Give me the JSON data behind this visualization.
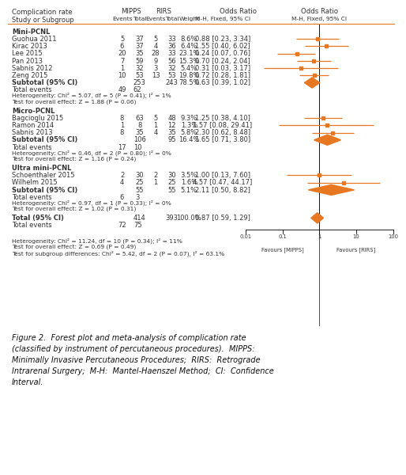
{
  "subgroups": [
    {
      "name": "Mini-PCNL",
      "studies": [
        {
          "label": "Guohua 2011",
          "e1": 5,
          "n1": 37,
          "e2": 5,
          "n2": 33,
          "weight": "8.6%",
          "or": 0.88,
          "ci_lo": 0.23,
          "ci_hi": 3.34,
          "or_text": "0.88 [0.23, 3.34]"
        },
        {
          "label": "Kirac 2013",
          "e1": 6,
          "n1": 37,
          "e2": 4,
          "n2": 36,
          "weight": "6.4%",
          "or": 1.55,
          "ci_lo": 0.4,
          "ci_hi": 6.02,
          "or_text": "1.55 [0.40, 6.02]"
        },
        {
          "label": "Lee 2015",
          "e1": 20,
          "n1": 35,
          "e2": 28,
          "n2": 33,
          "weight": "23.1%",
          "or": 0.24,
          "ci_lo": 0.07,
          "ci_hi": 0.76,
          "or_text": "0.24 [0.07, 0.76]"
        },
        {
          "label": "Pan 2013",
          "e1": 7,
          "n1": 59,
          "e2": 9,
          "n2": 56,
          "weight": "15.3%",
          "or": 0.7,
          "ci_lo": 0.24,
          "ci_hi": 2.04,
          "or_text": "0.70 [0.24, 2.04]"
        },
        {
          "label": "Sabnis 2012",
          "e1": 1,
          "n1": 32,
          "e2": 3,
          "n2": 32,
          "weight": "5.4%",
          "or": 0.31,
          "ci_lo": 0.03,
          "ci_hi": 3.17,
          "or_text": "0.31 [0.03, 3.17]"
        },
        {
          "label": "Zeng 2015",
          "e1": 10,
          "n1": 53,
          "e2": 13,
          "n2": 53,
          "weight": "19.8%",
          "or": 0.72,
          "ci_lo": 0.28,
          "ci_hi": 1.81,
          "or_text": "0.72 [0.28, 1.81]"
        }
      ],
      "subtotal_n1": 253,
      "subtotal_n2": 243,
      "subtotal_weight": "78.5%",
      "subtotal_or": 0.63,
      "subtotal_ci_lo": 0.39,
      "subtotal_ci_hi": 1.02,
      "subtotal_or_text": "0.63 [0.39, 1.02]",
      "te1": 49,
      "te2": 62,
      "heterogeneity": "Heterogeneity: Chi² = 5.07, df = 5 (P = 0.41); I² = 1%",
      "test_overall": "Test for overall effect: Z = 1.88 (P = 0.06)"
    },
    {
      "name": "Micro-PCNL",
      "studies": [
        {
          "label": "Bagcioglu 2015",
          "e1": 8,
          "n1": 63,
          "e2": 5,
          "n2": 48,
          "weight": "9.3%",
          "or": 1.25,
          "ci_lo": 0.38,
          "ci_hi": 4.1,
          "or_text": "1.25 [0.38, 4.10]"
        },
        {
          "label": "Ramon 2014",
          "e1": 1,
          "n1": 8,
          "e2": 1,
          "n2": 12,
          "weight": "1.3%",
          "or": 1.57,
          "ci_lo": 0.08,
          "ci_hi": 29.41,
          "or_text": "1.57 [0.08, 29.41]"
        },
        {
          "label": "Sabnis 2013",
          "e1": 8,
          "n1": 35,
          "e2": 4,
          "n2": 35,
          "weight": "5.8%",
          "or": 2.3,
          "ci_lo": 0.62,
          "ci_hi": 8.48,
          "or_text": "2.30 [0.62, 8.48]"
        }
      ],
      "subtotal_n1": 106,
      "subtotal_n2": 95,
      "subtotal_weight": "16.4%",
      "subtotal_or": 1.65,
      "subtotal_ci_lo": 0.71,
      "subtotal_ci_hi": 3.8,
      "subtotal_or_text": "1.65 [0.71, 3.80]",
      "te1": 17,
      "te2": 10,
      "heterogeneity": "Heterogeneity: Chi² = 0.46, df = 2 (P = 0.80); I² = 0%",
      "test_overall": "Test for overall effect: Z = 1.16 (P = 0.24)"
    },
    {
      "name": "Ultra mini-PCNL",
      "studies": [
        {
          "label": "Schoenthaler 2015",
          "e1": 2,
          "n1": 30,
          "e2": 2,
          "n2": 30,
          "weight": "3.5%",
          "or": 1.0,
          "ci_lo": 0.13,
          "ci_hi": 7.6,
          "or_text": "1.00 [0.13, 7.60]"
        },
        {
          "label": "Wilhelm 2015",
          "e1": 4,
          "n1": 25,
          "e2": 1,
          "n2": 25,
          "weight": "1.6%",
          "or": 4.57,
          "ci_lo": 0.47,
          "ci_hi": 44.17,
          "or_text": "4.57 [0.47, 44.17]"
        }
      ],
      "subtotal_n1": 55,
      "subtotal_n2": 55,
      "subtotal_weight": "5.1%",
      "subtotal_or": 2.11,
      "subtotal_ci_lo": 0.5,
      "subtotal_ci_hi": 8.82,
      "subtotal_or_text": "2.11 [0.50, 8.82]",
      "te1": 6,
      "te2": 3,
      "heterogeneity": "Heterogeneity: Chi² = 0.97, df = 1 (P = 0.33); I² = 0%",
      "test_overall": "Test for overall effect: Z = 1.02 (P = 0.31)"
    }
  ],
  "total_n1": 414,
  "total_n2": 393,
  "total_weight": "100.0%",
  "total_or": 0.87,
  "total_ci_lo": 0.59,
  "total_ci_hi": 1.29,
  "total_or_text": "0.87 [0.59, 1.29]",
  "total_te1": 72,
  "total_te2": 75,
  "heterogeneity_total": "Heterogeneity: Chi² = 11.24, df = 10 (P = 0.34); I² = 11%",
  "test_overall_total": "Test for overall effect: Z = 0.69 (P = 0.49)",
  "test_subgroup": "Test for subgroup differences: Chi² = 5.42, df = 2 (P = 0.07), I² = 63.1%",
  "xaxis_ticks": [
    0.01,
    0.1,
    1,
    10,
    100
  ],
  "xaxis_labels": [
    "0.01",
    "0.1",
    "1",
    "10",
    "100"
  ],
  "favour_left": "Favours [MIPPS]",
  "favour_right": "Favours [RIRS]",
  "marker_color": "#E87722",
  "line_color": "#E87722",
  "bg_color": "#FFFFFF",
  "text_color": "#333333",
  "header_line_color": "#E87722",
  "caption": "Figure 2.  Forest plot and meta-analysis of complication rate\n(classified by instrument of percutaneous procedures).  MIPPS:\nMinimally Invasive Percutaneous Procedures;  RIRS:  Retrograde\nIntrarenal Surgery;  M-H:  Mantel-Haenszel Method;  CI:  Confidence\nInterval.",
  "log_min": -2.0,
  "log_max": 2.0
}
